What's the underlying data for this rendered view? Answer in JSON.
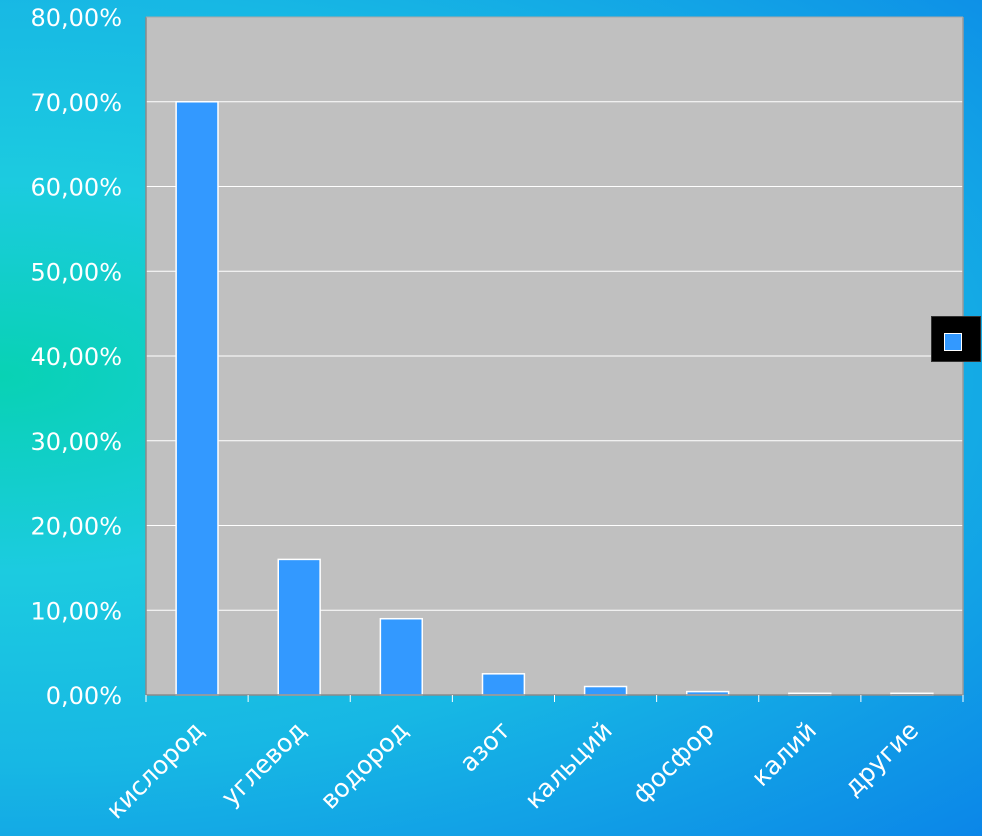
{
  "chart_data": {
    "type": "bar",
    "categories": [
      "кислород",
      "углевод",
      "водород",
      "азот",
      "кальций",
      "фосфор",
      "калий",
      "другие"
    ],
    "values": [
      70,
      16,
      9,
      2.5,
      1,
      0.4,
      0.2,
      0.2
    ],
    "ylim": [
      0,
      80
    ],
    "yticks": [
      "0,00%",
      "10,00%",
      "20,00%",
      "30,00%",
      "40,00%",
      "50,00%",
      "60,00%",
      "70,00%",
      "80,00%"
    ],
    "title": "",
    "xlabel": "",
    "ylabel": "",
    "grid": true,
    "legend_position": "right",
    "colors": {
      "bar": "#3399ff",
      "plot_background": "#c0c0c0",
      "gridline": "#ffffff",
      "legend_background": "#000000"
    }
  }
}
